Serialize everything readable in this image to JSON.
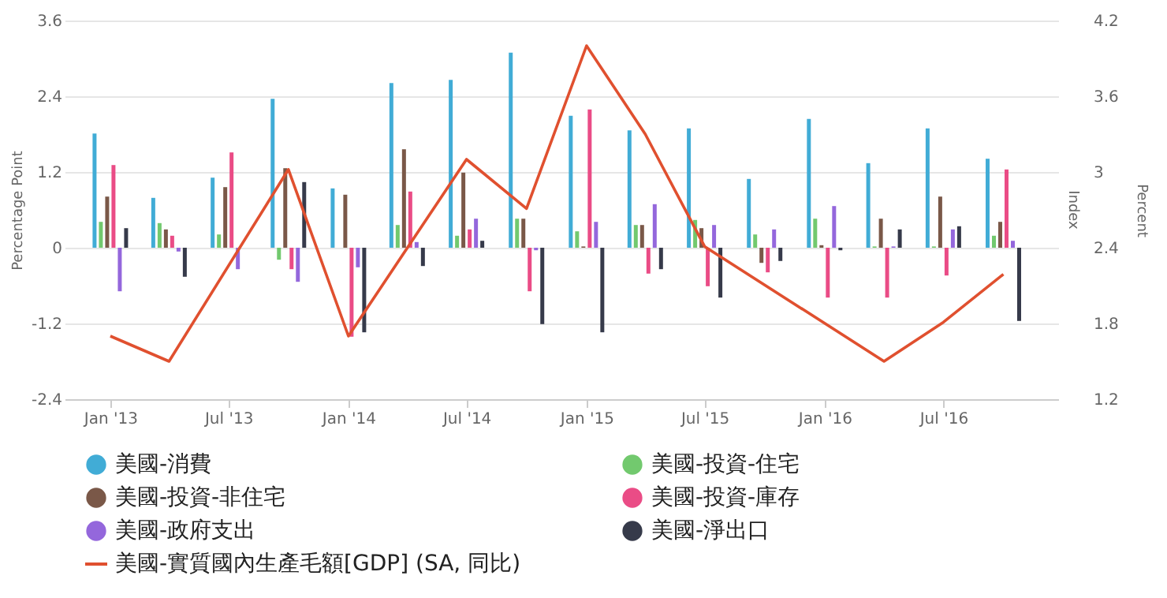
{
  "chart_data": {
    "type": "bar",
    "ylabel": "Percentage Point",
    "y2label": "Percent",
    "x": [
      "2013-01",
      "2013-04",
      "2013-07",
      "2013-10",
      "2014-01",
      "2014-04",
      "2014-07",
      "2014-10",
      "2015-01",
      "2015-04",
      "2015-07",
      "2015-10",
      "2016-01",
      "2016-04",
      "2016-07",
      "2016-10"
    ],
    "xlim": [
      "2012-10-23",
      "2016-12-24"
    ],
    "xticks": [
      {
        "value": "2013-01",
        "label": "Jan '13"
      },
      {
        "value": "2013-07",
        "label": "Jul '13"
      },
      {
        "value": "2014-01",
        "label": "Jan '14"
      },
      {
        "value": "2014-07",
        "label": "Jul '14"
      },
      {
        "value": "2015-01",
        "label": "Jan '15"
      },
      {
        "value": "2015-07",
        "label": "Jul '15"
      },
      {
        "value": "2016-01",
        "label": "Jan '16"
      },
      {
        "value": "2016-07",
        "label": "Jul '16"
      }
    ],
    "ylim": [
      -2.4,
      3.6
    ],
    "yticks": [
      -2.4,
      -1.2,
      0,
      1.2,
      2.4,
      3.6
    ],
    "y2lim": [
      1.2,
      4.2
    ],
    "y2ticks": [
      1.2,
      1.8,
      2.4,
      3,
      3.6,
      4.2
    ],
    "grid": "y",
    "legend": "bottom",
    "marker": "none",
    "line_style": "solid",
    "annotations": [
      "Index"
    ],
    "series": [
      {
        "name": "美國-消費",
        "color": "#41acd6",
        "values": [
          1.81,
          0.79,
          1.11,
          2.36,
          0.94,
          2.61,
          2.66,
          3.09,
          2.09,
          1.86,
          1.89,
          1.09,
          2.04,
          1.34,
          1.89,
          1.41
        ]
      },
      {
        "name": "美國-投資-住宅",
        "color": "#72c96e",
        "values": [
          0.41,
          0.39,
          0.21,
          -0.19,
          null,
          0.36,
          0.19,
          0.46,
          0.26,
          0.36,
          0.44,
          0.21,
          0.46,
          0.02,
          0.02,
          0.19
        ]
      },
      {
        "name": "美國-投資-非住宅",
        "color": "#7a5848",
        "values": [
          0.81,
          0.29,
          0.96,
          1.26,
          0.84,
          1.56,
          1.19,
          0.46,
          0.02,
          0.36,
          0.31,
          -0.24,
          0.04,
          0.46,
          0.81,
          0.41
        ]
      },
      {
        "name": "美國-投資-庫存",
        "color": "#ea4c86",
        "values": [
          1.31,
          0.19,
          1.51,
          -0.34,
          -1.41,
          0.89,
          0.29,
          -0.69,
          2.19,
          -0.41,
          -0.61,
          -0.39,
          -0.79,
          -0.79,
          -0.44,
          1.24
        ]
      },
      {
        "name": "美國-政府支出",
        "color": "#9467dc",
        "values": [
          -0.69,
          -0.06,
          -0.34,
          -0.54,
          -0.31,
          0.09,
          0.46,
          -0.04,
          0.41,
          0.69,
          0.36,
          0.29,
          0.66,
          0.02,
          0.29,
          0.11
        ]
      },
      {
        "name": "美國-淨出口",
        "color": "#363a4a",
        "values": [
          0.31,
          -0.46,
          0,
          1.04,
          -1.34,
          -0.29,
          0.11,
          -1.21,
          -1.34,
          -0.34,
          -0.79,
          -0.21,
          -0.04,
          0.29,
          0.34,
          -1.16
        ]
      },
      {
        "name": "美國-實質國內生產毛額[GDP] (SA, 同比)",
        "type": "line",
        "axis": "y2",
        "color": "#e0502f",
        "x": [
          "2013-01",
          "2013-04",
          "2013-10",
          "2014-01",
          "2014-07",
          "2014-10",
          "2015-01",
          "2015-04",
          "2015-07",
          "2016-04",
          "2016-07",
          "2016-10"
        ],
        "values": [
          1.7,
          1.5,
          3.02,
          1.7,
          3.1,
          2.71,
          4.0,
          3.3,
          2.41,
          1.5,
          1.81,
          2.19
        ]
      }
    ]
  }
}
